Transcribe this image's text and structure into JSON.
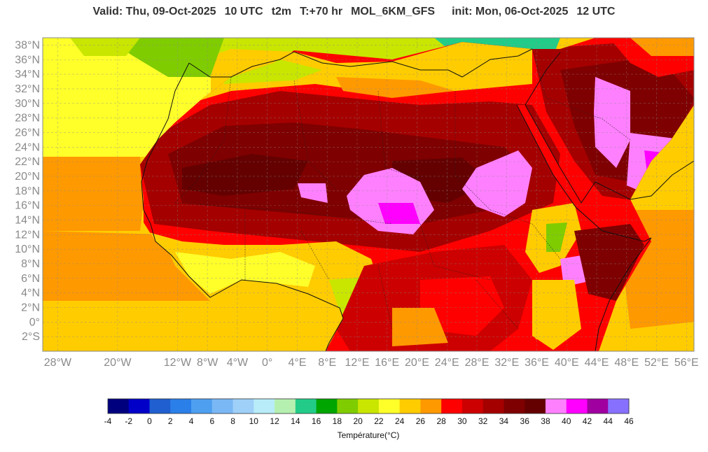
{
  "header": {
    "valid": "Valid: Thu, 09-Oct-2025",
    "time": "10 UTC",
    "param": "t2m",
    "lead": "T:+70 hr",
    "model": "MOL_6KM_GFS",
    "init": "init: Mon, 06-Oct-2025",
    "init_time": "12 UTC"
  },
  "map": {
    "extent": {
      "lon_min": -30,
      "lon_max": 57,
      "lat_min": -4,
      "lat_max": 39
    },
    "lat_ticks": [
      {
        "lat": 38,
        "label": "38°N"
      },
      {
        "lat": 36,
        "label": "36°N"
      },
      {
        "lat": 34,
        "label": "34°N"
      },
      {
        "lat": 32,
        "label": "32°N"
      },
      {
        "lat": 30,
        "label": "30°N"
      },
      {
        "lat": 28,
        "label": "28°N"
      },
      {
        "lat": 26,
        "label": "26°N"
      },
      {
        "lat": 24,
        "label": "24°N"
      },
      {
        "lat": 22,
        "label": "22°N"
      },
      {
        "lat": 20,
        "label": "20°N"
      },
      {
        "lat": 18,
        "label": "18°N"
      },
      {
        "lat": 16,
        "label": "16°N"
      },
      {
        "lat": 14,
        "label": "14°N"
      },
      {
        "lat": 12,
        "label": "12°N"
      },
      {
        "lat": 10,
        "label": "10°N"
      },
      {
        "lat": 8,
        "label": "8°N"
      },
      {
        "lat": 6,
        "label": "6°N"
      },
      {
        "lat": 4,
        "label": "4°N"
      },
      {
        "lat": 2,
        "label": "2°N"
      },
      {
        "lat": 0,
        "label": "0°"
      },
      {
        "lat": -2,
        "label": "2°S"
      }
    ],
    "lon_ticks": [
      {
        "lon": -28,
        "label": "28°W"
      },
      {
        "lon": -20,
        "label": "20°W"
      },
      {
        "lon": -12,
        "label": "12°W"
      },
      {
        "lon": -8,
        "label": "8°W"
      },
      {
        "lon": -4,
        "label": "4°W"
      },
      {
        "lon": 0,
        "label": "0°"
      },
      {
        "lon": 4,
        "label": "4°E"
      },
      {
        "lon": 8,
        "label": "8°E"
      },
      {
        "lon": 12,
        "label": "12°E"
      },
      {
        "lon": 16,
        "label": "16°E"
      },
      {
        "lon": 20,
        "label": "20°E"
      },
      {
        "lon": 24,
        "label": "24°E"
      },
      {
        "lon": 28,
        "label": "28°E"
      },
      {
        "lon": 32,
        "label": "32°E"
      },
      {
        "lon": 36,
        "label": "36°E"
      },
      {
        "lon": 40,
        "label": "40°E"
      },
      {
        "lon": 44,
        "label": "44°E"
      },
      {
        "lon": 48,
        "label": "48°E"
      },
      {
        "lon": 52,
        "label": "52°E"
      },
      {
        "lon": 56,
        "label": "56°E"
      }
    ]
  },
  "colorbar": {
    "title": "Température(°C)",
    "labels": [
      "-4",
      "-2",
      "0",
      "2",
      "4",
      "6",
      "8",
      "10",
      "12",
      "14",
      "16",
      "18",
      "20",
      "22",
      "24",
      "26",
      "28",
      "30",
      "32",
      "34",
      "36",
      "38",
      "40",
      "42",
      "44",
      "46"
    ],
    "colors": [
      "#00007f",
      "#0000c8",
      "#1f5fd0",
      "#2b7fe8",
      "#4e9ff0",
      "#7ab8f5",
      "#9fd0f8",
      "#b8ecf8",
      "#b6f0b0",
      "#22cc88",
      "#00a500",
      "#7fcc00",
      "#c8e600",
      "#ffff2a",
      "#ffcc00",
      "#ff9900",
      "#ff0000",
      "#cc0000",
      "#a50000",
      "#7f0000",
      "#640000",
      "#ff80ff",
      "#ff00ff",
      "#a000a0",
      "#8870ff"
    ]
  }
}
